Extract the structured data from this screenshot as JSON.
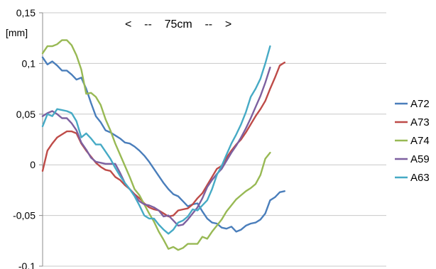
{
  "chart_data": {
    "type": "line",
    "title": "",
    "xlabel": "",
    "ylabel": "[mm]",
    "annotation": "<    --    75cm    --    >",
    "ylim": [
      -0.1,
      0.15
    ],
    "yticks": [
      0.15,
      0.1,
      0.05,
      0,
      -0.05,
      -0.1
    ],
    "ytick_labels": [
      "0,15",
      "0,1",
      "0,05",
      "0",
      "-0,05",
      "-0,1"
    ],
    "grid": true,
    "legend_position": "right",
    "x_points": 72,
    "series": [
      {
        "name": "A72",
        "color": "#4a7ebb",
        "values": [
          0.106,
          0.099,
          0.102,
          0.098,
          0.093,
          0.093,
          0.089,
          0.084,
          0.086,
          0.075,
          0.061,
          0.048,
          0.042,
          0.034,
          0.032,
          0.029,
          0.026,
          0.022,
          0.021,
          0.018,
          0.014,
          0.009,
          0.003,
          -0.004,
          -0.011,
          -0.018,
          -0.024,
          -0.029,
          -0.031,
          -0.036,
          -0.041,
          -0.039,
          -0.038,
          -0.046,
          -0.053,
          -0.057,
          -0.058,
          -0.062,
          -0.063,
          -0.061,
          -0.066,
          -0.064,
          -0.06,
          -0.058,
          -0.057,
          -0.054,
          -0.048,
          -0.035,
          -0.032,
          -0.027,
          -0.026
        ]
      },
      {
        "name": "A73",
        "color": "#be4b48",
        "values": [
          -0.006,
          0.014,
          0.021,
          0.027,
          0.03,
          0.033,
          0.033,
          0.031,
          0.021,
          0.014,
          0.008,
          0.002,
          -0.002,
          -0.005,
          -0.006,
          -0.012,
          -0.015,
          -0.02,
          -0.024,
          -0.029,
          -0.033,
          -0.038,
          -0.042,
          -0.044,
          -0.045,
          -0.048,
          -0.051,
          -0.05,
          -0.045,
          -0.044,
          -0.043,
          -0.039,
          -0.033,
          -0.028,
          -0.02,
          -0.012,
          -0.004,
          -0.001,
          0.007,
          0.014,
          0.02,
          0.025,
          0.032,
          0.04,
          0.048,
          0.055,
          0.063,
          0.075,
          0.086,
          0.098,
          0.101
        ]
      },
      {
        "name": "A74",
        "color": "#98b954",
        "values": [
          0.11,
          0.117,
          0.117,
          0.119,
          0.123,
          0.123,
          0.118,
          0.108,
          0.094,
          0.07,
          0.071,
          0.067,
          0.059,
          0.045,
          0.034,
          0.021,
          0.01,
          -0.001,
          -0.012,
          -0.024,
          -0.03,
          -0.039,
          -0.048,
          -0.056,
          -0.066,
          -0.074,
          -0.083,
          -0.081,
          -0.084,
          -0.082,
          -0.078,
          -0.078,
          -0.078,
          -0.071,
          -0.073,
          -0.066,
          -0.06,
          -0.054,
          -0.046,
          -0.04,
          -0.034,
          -0.03,
          -0.026,
          -0.023,
          -0.019,
          -0.01,
          0.006,
          0.012
        ]
      },
      {
        "name": "A59",
        "color": "#7d60a0",
        "values": [
          0.048,
          0.051,
          0.053,
          0.05,
          0.046,
          0.046,
          0.041,
          0.034,
          0.022,
          0.015,
          0.007,
          0.003,
          0.002,
          0.001,
          0.001,
          0.001,
          -0.008,
          -0.018,
          -0.024,
          -0.03,
          -0.036,
          -0.039,
          -0.04,
          -0.042,
          -0.045,
          -0.051,
          -0.05,
          -0.055,
          -0.06,
          -0.059,
          -0.054,
          -0.048,
          -0.042,
          -0.033,
          -0.022,
          -0.015,
          -0.009,
          -0.004,
          0.004,
          0.012,
          0.019,
          0.027,
          0.036,
          0.046,
          0.057,
          0.068,
          0.081,
          0.096
        ]
      },
      {
        "name": "A63",
        "color": "#46aac5",
        "values": [
          0.038,
          0.05,
          0.048,
          0.055,
          0.054,
          0.053,
          0.051,
          0.043,
          0.027,
          0.031,
          0.026,
          0.02,
          0.02,
          0.013,
          0.006,
          -0.003,
          -0.011,
          -0.018,
          -0.024,
          -0.031,
          -0.04,
          -0.05,
          -0.053,
          -0.053,
          -0.059,
          -0.064,
          -0.068,
          -0.064,
          -0.057,
          -0.055,
          -0.051,
          -0.044,
          -0.045,
          -0.04,
          -0.035,
          -0.024,
          -0.01,
          -0.001,
          0.01,
          0.021,
          0.03,
          0.04,
          0.052,
          0.067,
          0.075,
          0.085,
          0.1,
          0.117
        ]
      }
    ]
  }
}
